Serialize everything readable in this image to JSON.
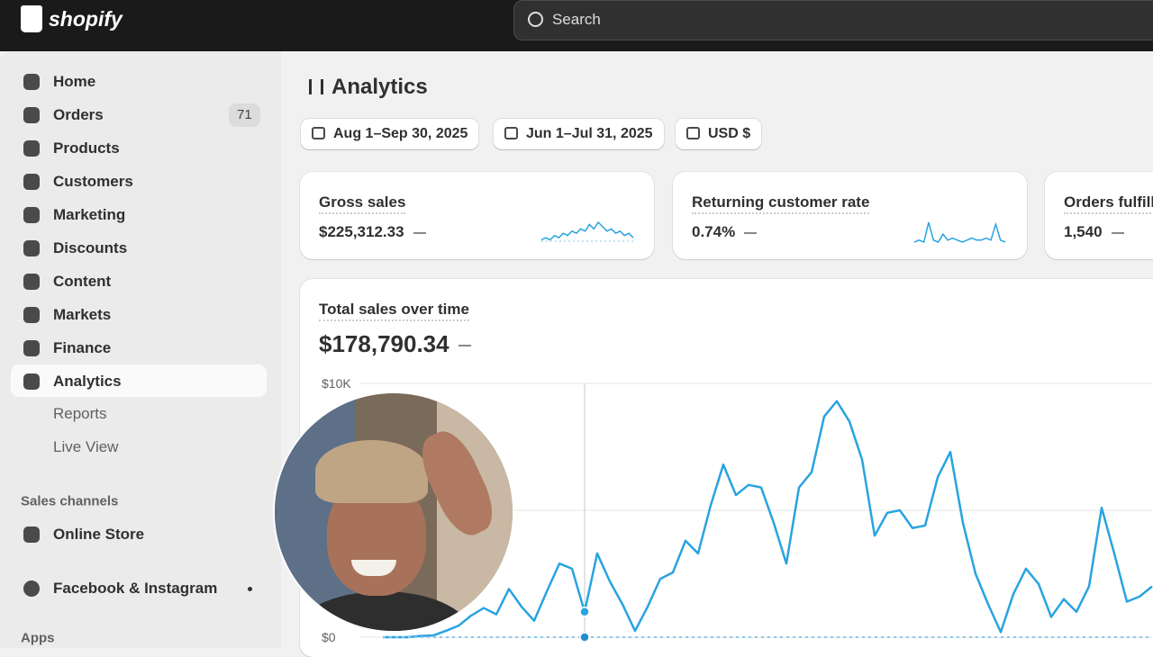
{
  "header": {
    "brand": "shopify",
    "search": "Search"
  },
  "nav": {
    "items": [
      {
        "label": "Home"
      },
      {
        "label": "Orders",
        "badge": "71"
      },
      {
        "label": "Products"
      },
      {
        "label": "Customers"
      },
      {
        "label": "Marketing"
      },
      {
        "label": "Discounts"
      },
      {
        "label": "Content"
      },
      {
        "label": "Markets"
      },
      {
        "label": "Finance"
      },
      {
        "label": "Analytics"
      }
    ],
    "sub_items": [
      "Reports",
      "Live View"
    ],
    "sales_channels": "Sales channels",
    "channels": [
      "Online Store",
      "Facebook & Instagram"
    ],
    "apps": "Apps"
  },
  "page": {
    "title": "Analytics",
    "filters": [
      "Aug 1–Sep 30, 2025",
      "Jun 1–Jul 31, 2025",
      "USD $"
    ],
    "metrics": [
      {
        "label": "Gross sales",
        "value": "$225,312.33",
        "trend": [
          1,
          2,
          1,
          3,
          2,
          4,
          3,
          5,
          4,
          6,
          5,
          8,
          6,
          9,
          7,
          5,
          6,
          4,
          5,
          3,
          4,
          2
        ]
      },
      {
        "label": "Returning customer rate",
        "value": "0.74%",
        "trend": [
          0,
          1,
          0,
          10,
          1,
          0,
          4,
          1,
          2,
          1,
          0,
          1,
          2,
          1,
          1,
          2,
          1,
          9,
          1,
          0
        ]
      },
      {
        "label": "Orders fulfilled",
        "value": "1,540"
      }
    ]
  },
  "chart_data": {
    "type": "line",
    "title": "Total sales over time",
    "total": "$178,790.34",
    "series": [
      {
        "color": "#29a3e0",
        "values": [
          0,
          0,
          0,
          50,
          70,
          250,
          450,
          850,
          1150,
          900,
          1900,
          1200,
          650,
          1800,
          2900,
          2700,
          1000,
          3300,
          2200,
          1300,
          250,
          1200,
          2300,
          2550,
          3800,
          3300,
          5200,
          6800,
          5600,
          6000,
          5900,
          4500,
          2900,
          5900,
          6500,
          8700,
          9300,
          8500,
          7000,
          4000,
          4900,
          5000,
          4300,
          4400,
          6300,
          7300,
          4500,
          2500,
          1300,
          200,
          1700,
          2700,
          2100,
          800,
          1500,
          1000,
          2000,
          5100,
          3300,
          1400,
          1600,
          2000
        ]
      },
      {
        "color": "#8cc8ea",
        "values": [
          0,
          0,
          0,
          0,
          0,
          0,
          0,
          0,
          0,
          0,
          0,
          0,
          0,
          0,
          0,
          0,
          0,
          0,
          0,
          0,
          0,
          0,
          0,
          0,
          0,
          0,
          0,
          0,
          0,
          0,
          0,
          0,
          0,
          0,
          0,
          0,
          0,
          0,
          0,
          0,
          0,
          0,
          0,
          0,
          0,
          0,
          0,
          0,
          0,
          0,
          0,
          0,
          0,
          0,
          0,
          0,
          0,
          0,
          0,
          0,
          0,
          0
        ]
      }
    ],
    "ylim": [
      0,
      10000
    ],
    "yticks": [
      {
        "value": 0,
        "label": "$0"
      },
      {
        "value": 10000,
        "label": "$10K"
      }
    ],
    "grid": true
  }
}
